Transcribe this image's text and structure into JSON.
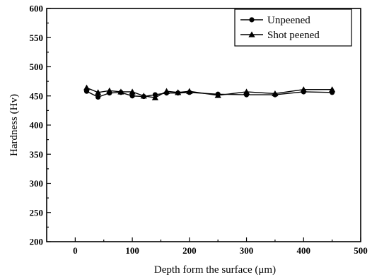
{
  "chart_data": {
    "type": "line",
    "xlabel": "Depth form the surface (μm)",
    "ylabel": "Hardness (Hv)",
    "xlim": [
      -50,
      500
    ],
    "ylim": [
      200,
      600
    ],
    "xticks": [
      0,
      100,
      200,
      300,
      400,
      500
    ],
    "yticks": [
      200,
      250,
      300,
      350,
      400,
      450,
      500,
      550,
      600
    ],
    "legend_position": "top-right",
    "series": [
      {
        "name": "Unpeened",
        "marker": "circle",
        "color": "#000000",
        "x": [
          20,
          40,
          60,
          80,
          100,
          120,
          140,
          160,
          180,
          200,
          250,
          300,
          350,
          400,
          450
        ],
        "y": [
          458,
          448,
          455,
          456,
          450,
          449,
          452,
          455,
          455,
          456,
          453,
          452,
          452,
          457,
          456
        ]
      },
      {
        "name": "Shot peened",
        "marker": "triangle",
        "color": "#000000",
        "x": [
          20,
          40,
          60,
          80,
          100,
          120,
          140,
          160,
          180,
          200,
          250,
          300,
          350,
          400,
          450
        ],
        "y": [
          464,
          456,
          459,
          457,
          457,
          450,
          447,
          458,
          456,
          458,
          451,
          457,
          454,
          461,
          461
        ]
      }
    ]
  }
}
